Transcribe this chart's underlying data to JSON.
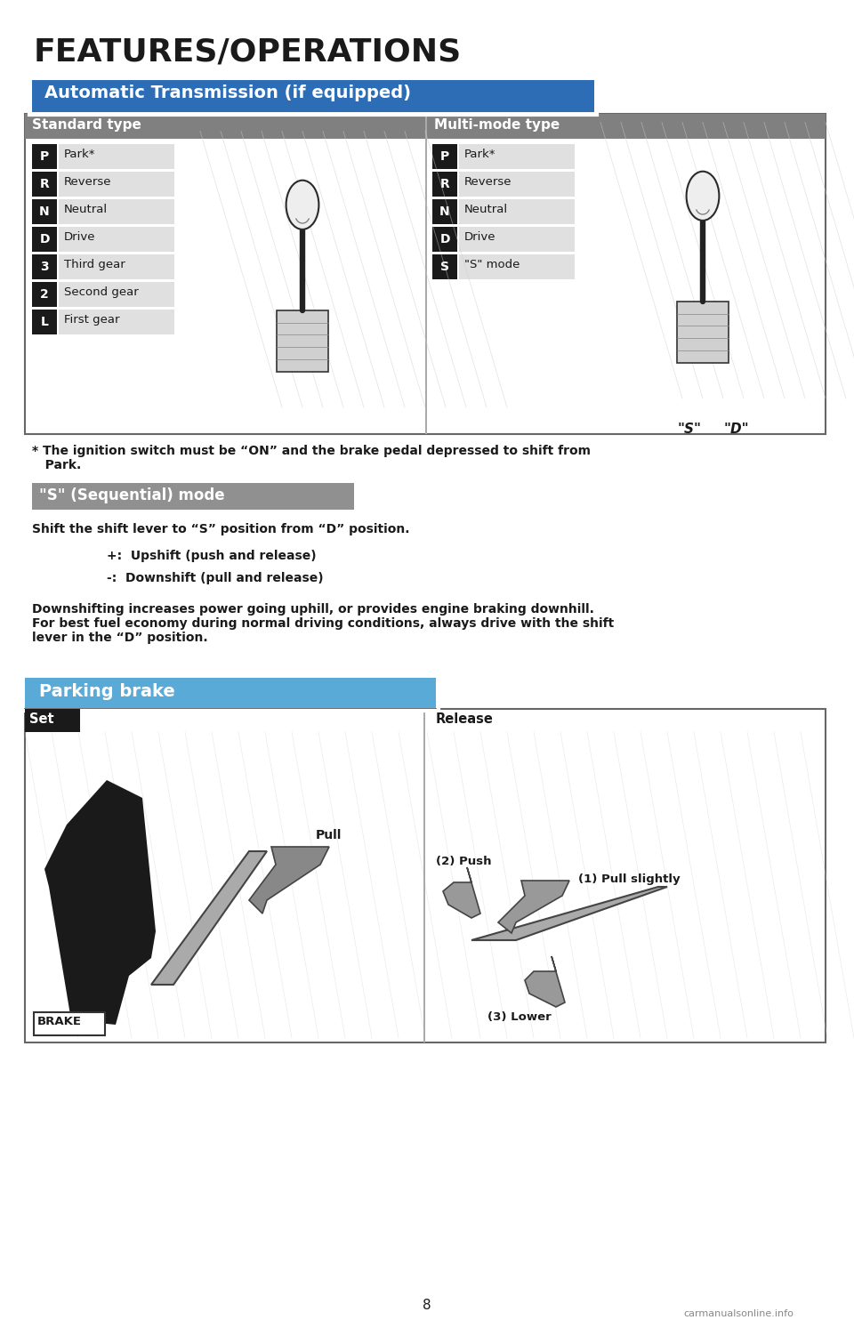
{
  "page_title": "FEATURES/OPERATIONS",
  "section1_title": "Automatic Transmission (if equipped)",
  "left_panel_title": "Standard type",
  "right_panel_title": "Multi-mode type",
  "standard_gears": [
    {
      "letter": "P",
      "label": "Park*"
    },
    {
      "letter": "R",
      "label": "Reverse"
    },
    {
      "letter": "N",
      "label": "Neutral"
    },
    {
      "letter": "D",
      "label": "Drive"
    },
    {
      "letter": "3",
      "label": "Third gear"
    },
    {
      "letter": "2",
      "label": "Second gear"
    },
    {
      "letter": "L",
      "label": "First gear"
    }
  ],
  "multimode_gears": [
    {
      "letter": "P",
      "label": "Park*"
    },
    {
      "letter": "R",
      "label": "Reverse"
    },
    {
      "letter": "N",
      "label": "Neutral"
    },
    {
      "letter": "D",
      "label": "Drive"
    },
    {
      "letter": "S",
      "label": "\"S\" mode"
    }
  ],
  "note_text": "* The ignition switch must be “ON” and the brake pedal depressed to shift from\n   Park.",
  "section2_title": "\"S\" (Sequential) mode",
  "seq_text1": "Shift the shift lever to “S” position from “D” position.",
  "seq_bullet1": "+:  Upshift (push and release)",
  "seq_bullet2": "-:  Downshift (pull and release)",
  "seq_text2": "Downshifting increases power going uphill, or provides engine braking downhill.\nFor best fuel economy during normal driving conditions, always drive with the shift\nlever in the “D” position.",
  "section3_title": "Parking brake",
  "set_label": "Set",
  "pull_label": "Pull",
  "release_label": "Release",
  "push_label": "(2) Push",
  "pull_slightly_label": "(1) Pull slightly",
  "lower_label": "(3) Lower",
  "brake_label": "BRAKE",
  "page_number": "8",
  "watermark": "carmanualsonline.info",
  "bg_color": "#ffffff"
}
